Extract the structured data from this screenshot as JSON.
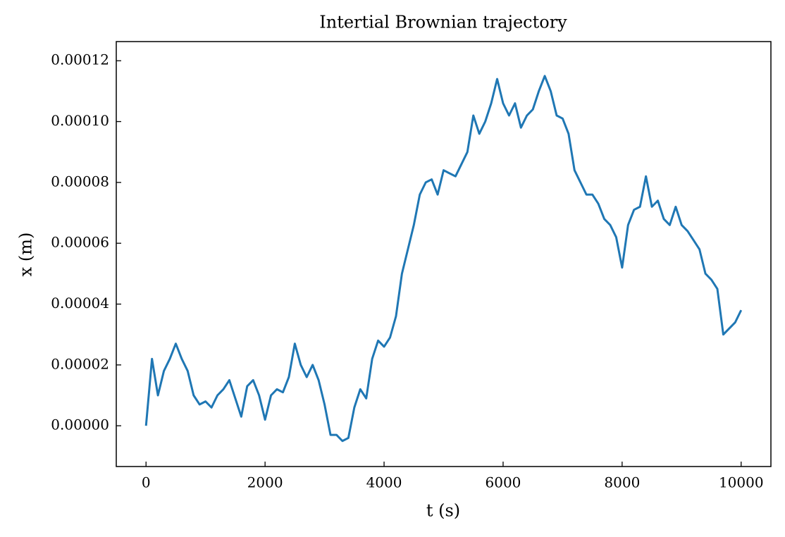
{
  "chart_data": {
    "type": "line",
    "title": "Intertial Brownian trajectory",
    "xlabel": "t (s)",
    "ylabel": "x (m)",
    "x": [
      0,
      100,
      200,
      300,
      400,
      500,
      600,
      700,
      800,
      900,
      1000,
      1100,
      1200,
      1300,
      1400,
      1500,
      1600,
      1700,
      1800,
      1900,
      2000,
      2100,
      2200,
      2300,
      2400,
      2500,
      2600,
      2700,
      2800,
      2900,
      3000,
      3100,
      3200,
      3300,
      3400,
      3500,
      3600,
      3700,
      3800,
      3900,
      4000,
      4100,
      4200,
      4300,
      4400,
      4500,
      4600,
      4700,
      4800,
      4900,
      5000,
      5100,
      5200,
      5300,
      5400,
      5500,
      5600,
      5700,
      5800,
      5900,
      6000,
      6100,
      6200,
      6300,
      6400,
      6500,
      6600,
      6700,
      6800,
      6900,
      7000,
      7100,
      7200,
      7300,
      7400,
      7500,
      7600,
      7700,
      7800,
      7900,
      8000,
      8100,
      8200,
      8300,
      8400,
      8500,
      8600,
      8700,
      8800,
      8900,
      9000,
      9100,
      9200,
      9300,
      9400,
      9500,
      9600,
      9700,
      9800,
      9900,
      10000
    ],
    "values": [
      0,
      2.2e-05,
      1e-05,
      1.8e-05,
      2.2e-05,
      2.7e-05,
      2.2e-05,
      1.8e-05,
      1e-05,
      7e-06,
      8e-06,
      6e-06,
      1e-05,
      1.2e-05,
      1.5e-05,
      9e-06,
      3e-06,
      1.3e-05,
      1.5e-05,
      1e-05,
      2e-06,
      1e-05,
      1.2e-05,
      1.1e-05,
      1.6e-05,
      2.7e-05,
      2e-05,
      1.6e-05,
      2e-05,
      1.5e-05,
      7e-06,
      -3e-06,
      -3e-06,
      -5e-06,
      -4e-06,
      6e-06,
      1.2e-05,
      9e-06,
      2.2e-05,
      2.8e-05,
      2.6e-05,
      2.9e-05,
      3.6e-05,
      5e-05,
      5.8e-05,
      6.6e-05,
      7.6e-05,
      8e-05,
      8.1e-05,
      7.6e-05,
      8.4e-05,
      8.3e-05,
      8.2e-05,
      8.6e-05,
      9e-05,
      0.000102,
      9.6e-05,
      0.0001,
      0.000106,
      0.000114,
      0.000106,
      0.000102,
      0.000106,
      9.8e-05,
      0.000102,
      0.000104,
      0.00011,
      0.000115,
      0.00011,
      0.000102,
      0.000101,
      9.6e-05,
      8.4e-05,
      8e-05,
      7.6e-05,
      7.6e-05,
      7.3e-05,
      6.8e-05,
      6.6e-05,
      6.2e-05,
      5.2e-05,
      6.6e-05,
      7.1e-05,
      7.2e-05,
      8.2e-05,
      7.2e-05,
      7.4e-05,
      6.8e-05,
      6.6e-05,
      7.2e-05,
      6.6e-05,
      6.4e-05,
      6.1e-05,
      5.8e-05,
      5e-05,
      4.8e-05,
      4.5e-05,
      3e-05,
      3.2e-05,
      3.4e-05,
      3.8e-05
    ],
    "color": "#1f77b4",
    "xlim": [
      -500,
      10500
    ],
    "xticks": [
      0,
      2000,
      4000,
      6000,
      8000,
      10000
    ],
    "ylim": [
      -1.34e-05,
      0.0001263
    ],
    "yticks": [
      {
        "value": 0,
        "label": "0.00000"
      },
      {
        "value": 2e-05,
        "label": "0.00002"
      },
      {
        "value": 4e-05,
        "label": "0.00004"
      },
      {
        "value": 6e-05,
        "label": "0.00006"
      },
      {
        "value": 8e-05,
        "label": "0.00008"
      },
      {
        "value": 0.0001,
        "label": "0.00010"
      },
      {
        "value": 0.00012,
        "label": "0.00012"
      }
    ]
  }
}
